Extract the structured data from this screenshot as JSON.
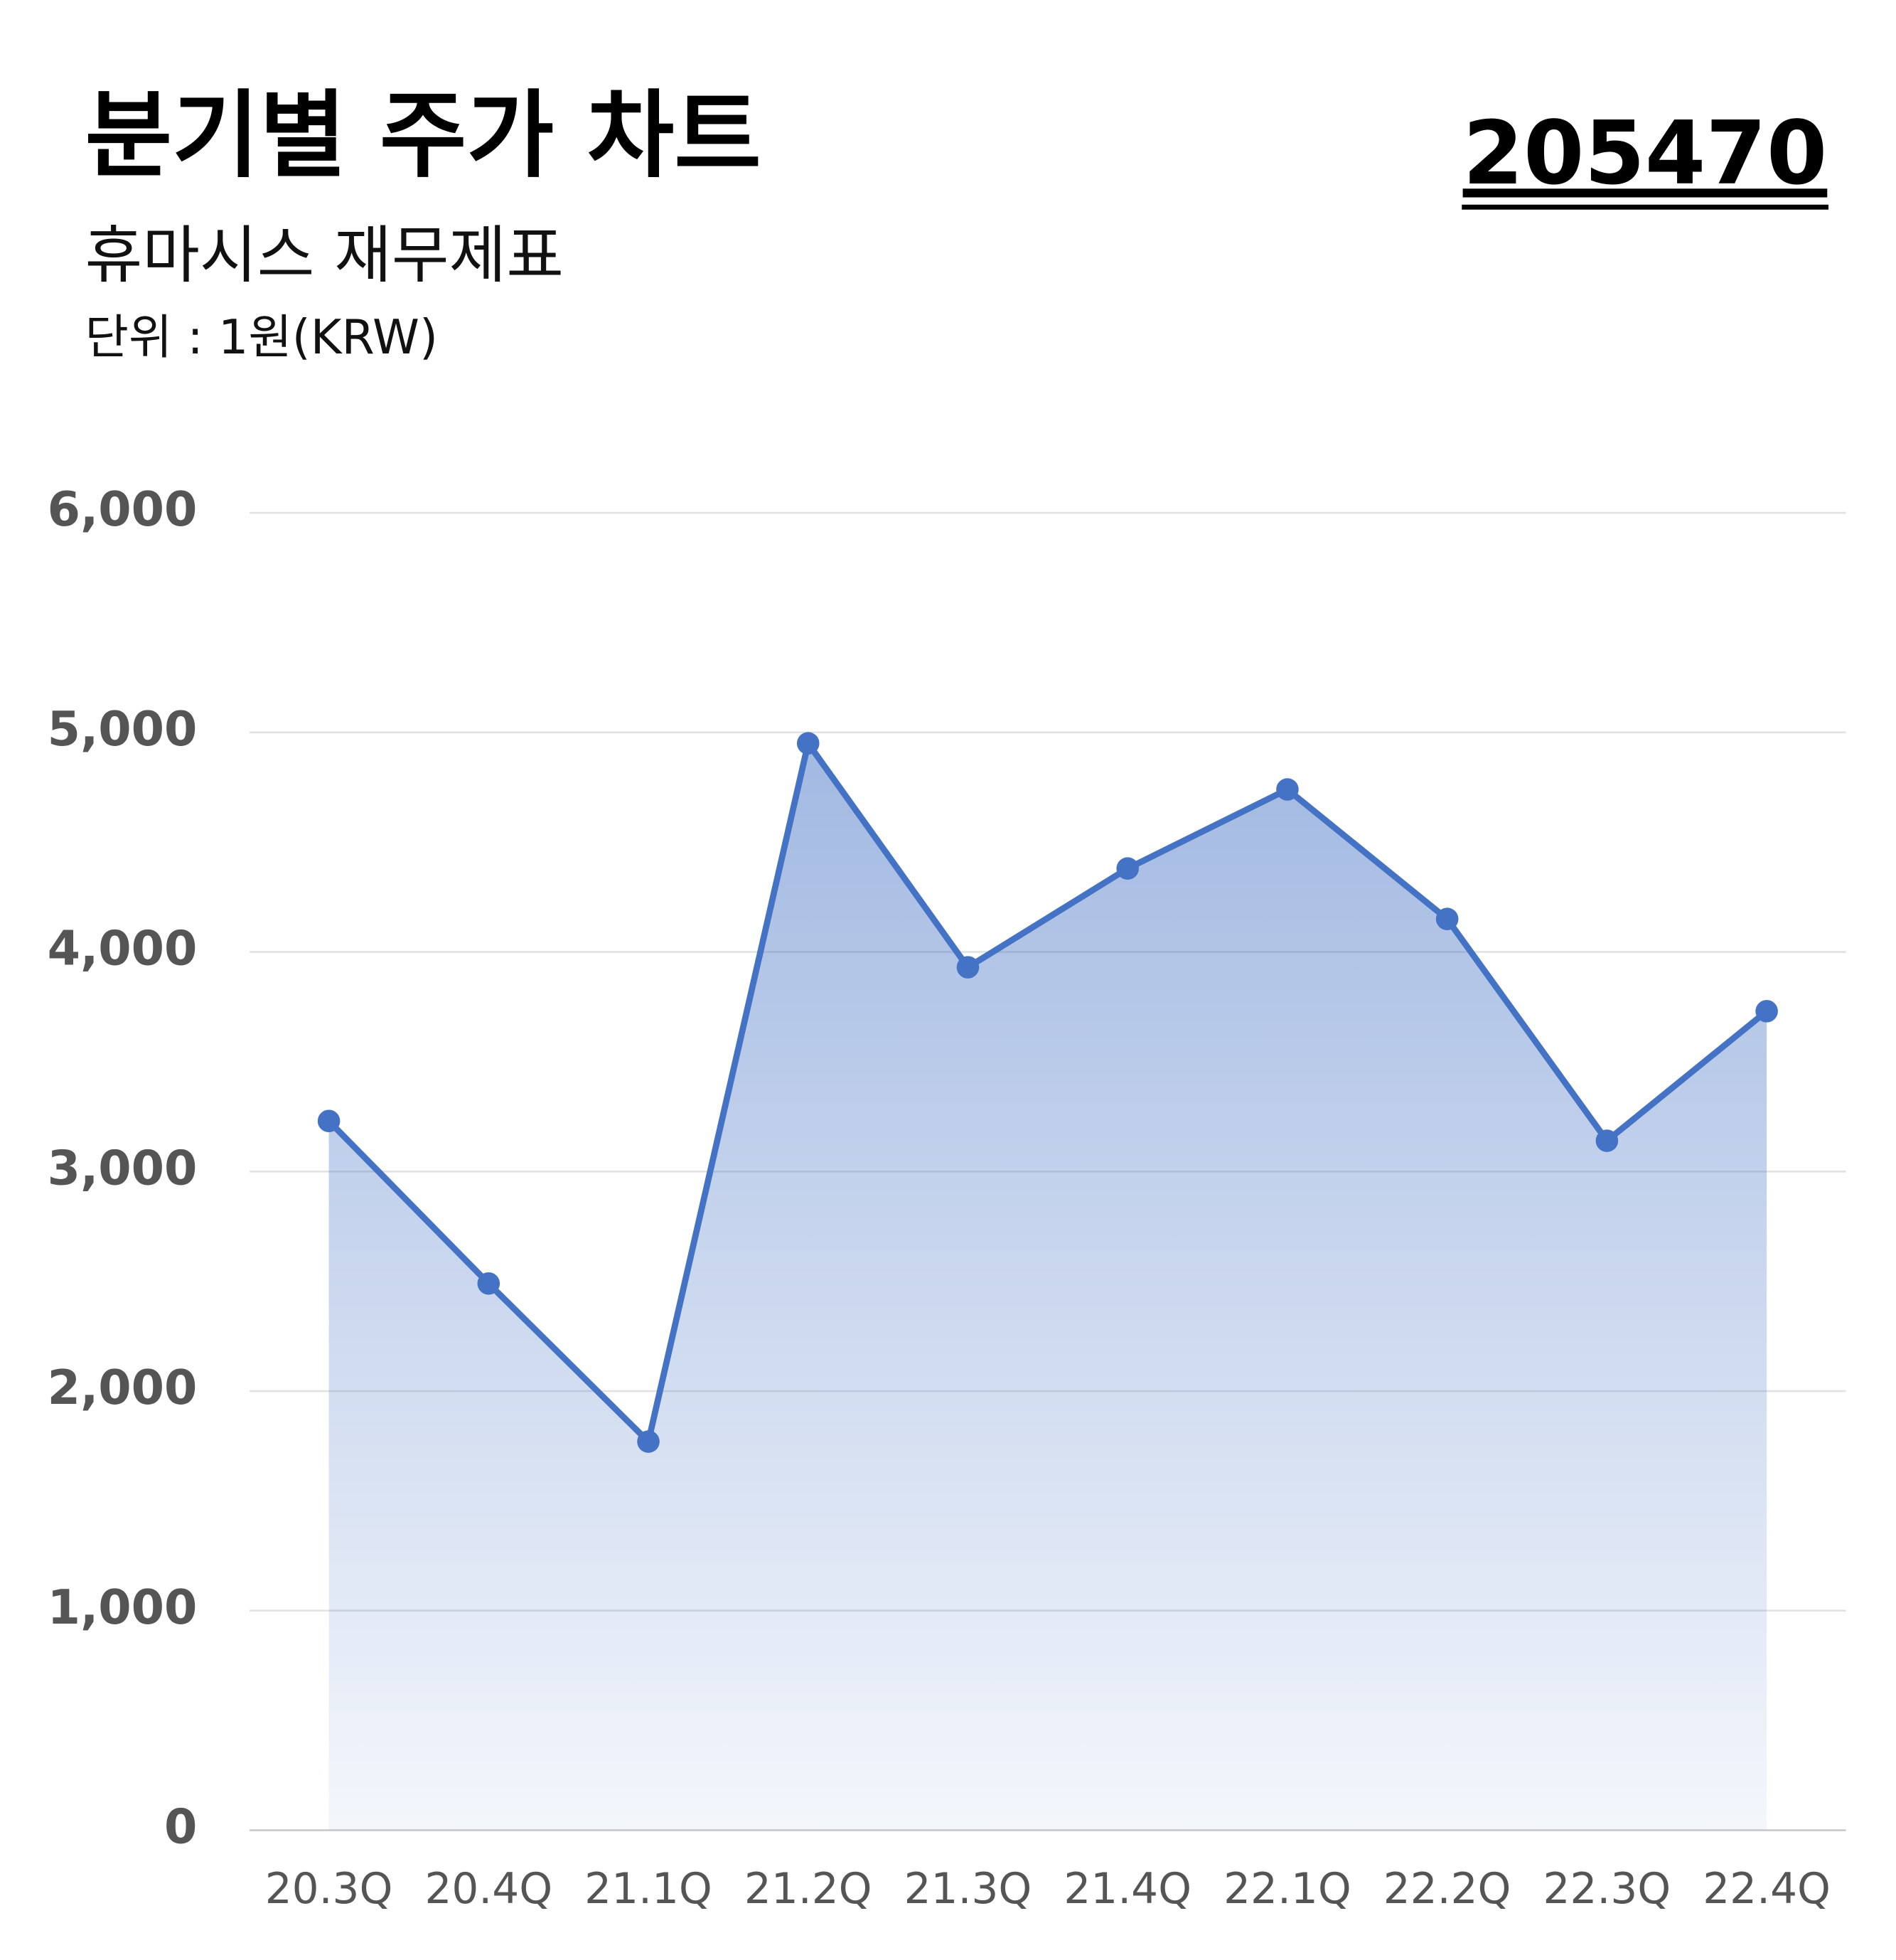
{
  "chart_data": {
    "type": "area",
    "title": "분기별 주가 차트",
    "subtitle": "휴마시스 재무제표",
    "unit_note": "단위 : 1원(KRW)",
    "stock_code": "205470",
    "categories": [
      "20.3Q",
      "20.4Q",
      "21.1Q",
      "21.2Q",
      "21.3Q",
      "21.4Q",
      "22.1Q",
      "22.2Q",
      "22.3Q",
      "22.4Q"
    ],
    "values": [
      3230,
      2490,
      1770,
      4950,
      3930,
      4380,
      4740,
      4150,
      3140,
      3730
    ],
    "color": "#4472c4",
    "ylim": [
      0,
      6000
    ],
    "yticks": [
      0,
      {
        "value": 1000,
        "label": "1,000"
      },
      {
        "value": 2000,
        "label": "2,000"
      },
      {
        "value": 3000,
        "label": "3,000"
      },
      {
        "value": 4000,
        "label": "4,000"
      },
      {
        "value": 5000,
        "label": "5,000"
      },
      {
        "value": 6000,
        "label": "6,000"
      }
    ],
    "grid": true
  }
}
